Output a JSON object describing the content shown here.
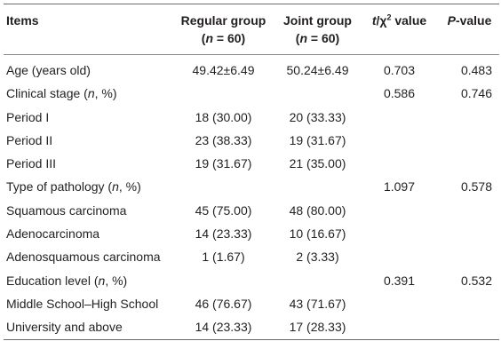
{
  "header": {
    "items": "Items",
    "regular": "Regular group",
    "regular_n": "n",
    "regular_n_rest": " = 60)",
    "joint": "Joint group",
    "joint_n": "n",
    "joint_n_rest": " = 60)",
    "stat_t": "t",
    "stat_mid": "/χ",
    "stat_sup": "2",
    "stat_rest": " value",
    "p_italic": "P",
    "p_rest": "-value"
  },
  "rows": [
    {
      "label": "Age (years old)",
      "italic": "",
      "suffix": "",
      "regular": "49.42±6.49",
      "joint": "50.24±6.49",
      "stat": "0.703",
      "p": "0.483"
    },
    {
      "label": "Clinical stage (",
      "italic": "n",
      "suffix": ", %)",
      "regular": "",
      "joint": "",
      "stat": "0.586",
      "p": "0.746"
    },
    {
      "label": "Period I",
      "italic": "",
      "suffix": "",
      "regular": "18 (30.00)",
      "joint": "20 (33.33)",
      "stat": "",
      "p": ""
    },
    {
      "label": "Period II",
      "italic": "",
      "suffix": "",
      "regular": "23 (38.33)",
      "joint": "19 (31.67)",
      "stat": "",
      "p": ""
    },
    {
      "label": "Period III",
      "italic": "",
      "suffix": "",
      "regular": "19 (31.67)",
      "joint": "21 (35.00)",
      "stat": "",
      "p": ""
    },
    {
      "label": "Type of pathology (",
      "italic": "n",
      "suffix": ", %)",
      "regular": "",
      "joint": "",
      "stat": "1.097",
      "p": "0.578"
    },
    {
      "label": "Squamous carcinoma",
      "italic": "",
      "suffix": "",
      "regular": "45 (75.00)",
      "joint": "48 (80.00)",
      "stat": "",
      "p": ""
    },
    {
      "label": "Adenocarcinoma",
      "italic": "",
      "suffix": "",
      "regular": "14 (23.33)",
      "joint": "10 (16.67)",
      "stat": "",
      "p": ""
    },
    {
      "label": "Adenosquamous carcinoma",
      "italic": "",
      "suffix": "",
      "regular": "1 (1.67)",
      "joint": "2 (3.33)",
      "stat": "",
      "p": ""
    },
    {
      "label": "Education level (",
      "italic": "n",
      "suffix": ", %)",
      "regular": "",
      "joint": "",
      "stat": "0.391",
      "p": "0.532"
    },
    {
      "label": "Middle School–High School",
      "italic": "",
      "suffix": "",
      "regular": "46 (76.67)",
      "joint": "43 (71.67)",
      "stat": "",
      "p": ""
    },
    {
      "label": "University and above",
      "italic": "",
      "suffix": "",
      "regular": "14 (23.33)",
      "joint": "17 (28.33)",
      "stat": "",
      "p": ""
    }
  ]
}
